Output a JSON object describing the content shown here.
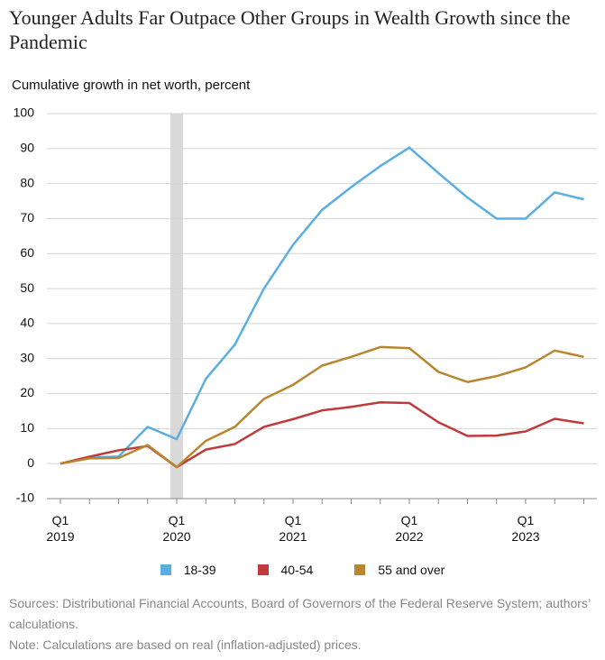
{
  "chart_data": {
    "type": "line",
    "title": "Younger Adults Far Outpace Other Groups in Wealth Growth since the Pandemic",
    "y_label": "Cumulative growth in net worth, percent",
    "categories": [
      "Q1 2019",
      null,
      null,
      null,
      "Q1 2020",
      null,
      null,
      null,
      "Q1 2021",
      null,
      null,
      null,
      "Q1 2022",
      null,
      null,
      null,
      "Q1 2023",
      null,
      null
    ],
    "series": [
      {
        "name": "18-39",
        "color": "#5aaee0",
        "values": [
          0,
          1.8,
          2,
          10.5,
          7,
          24.2,
          34,
          50,
          62.5,
          72.5,
          79,
          85,
          90.3,
          83,
          76,
          70,
          70,
          77.5,
          75.5
        ]
      },
      {
        "name": "40-54",
        "color": "#c0393b",
        "values": [
          0,
          2,
          3.8,
          5,
          -1,
          4,
          5.6,
          10.5,
          12.7,
          15.2,
          16.2,
          17.5,
          17.3,
          11.8,
          7.9,
          8,
          9.2,
          12.8,
          11.5
        ]
      },
      {
        "name": "55 and over",
        "color": "#b8862e",
        "values": [
          0,
          1.5,
          1.6,
          5.3,
          -1,
          6.5,
          10.5,
          18.5,
          22.5,
          28,
          30.5,
          33.3,
          33,
          26.2,
          23.3,
          25,
          27.5,
          32.3,
          30.5
        ]
      }
    ],
    "ylim": [
      -10,
      100
    ],
    "yticks": [
      -10,
      0,
      10,
      20,
      30,
      40,
      50,
      60,
      70,
      80,
      90,
      100
    ],
    "grid": true,
    "sources": "Sources: Distributional Financial Accounts, Board of Governors of the Federal Reserve System; authors’ calculations.",
    "note": "Note: Calculations are based on real (inflation-adjusted) prices."
  }
}
